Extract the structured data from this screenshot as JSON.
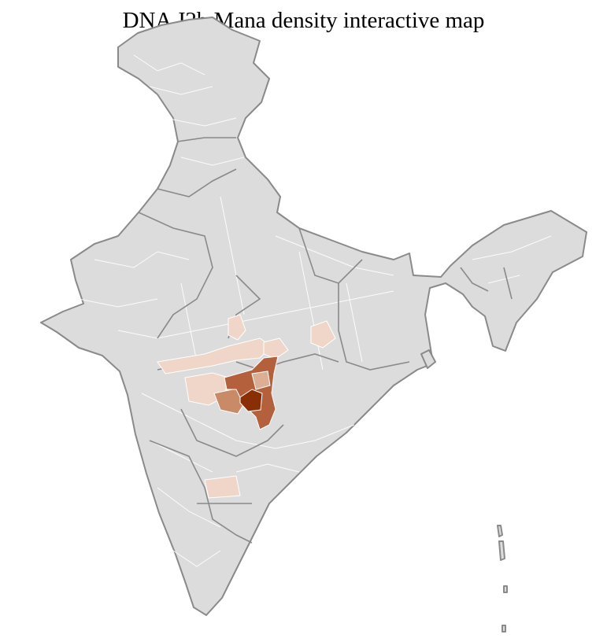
{
  "title": "DNA J2b Mana density interactive map",
  "colors": {
    "no_data": "#dcdcdc",
    "border": "#8a8a8a",
    "low": "#efd6c8",
    "low_mid": "#dcae94",
    "mid": "#c98a68",
    "high": "#b4603c",
    "max": "#8a2e05"
  }
}
